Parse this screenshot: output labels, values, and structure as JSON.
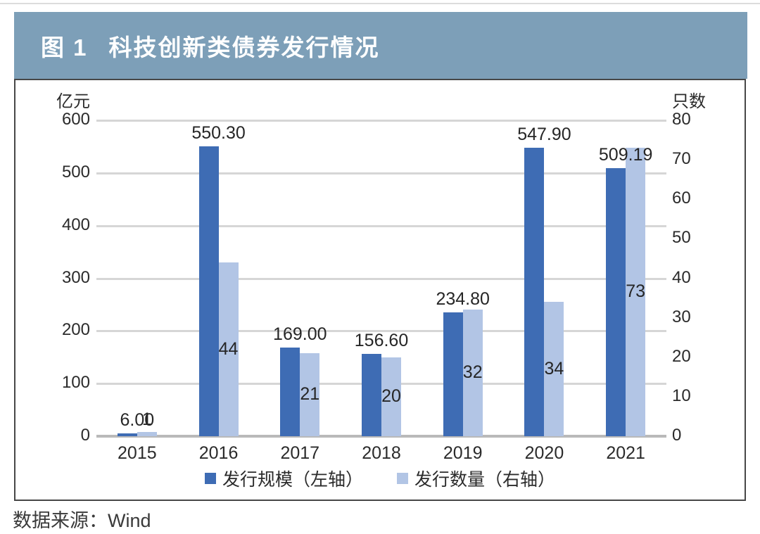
{
  "page": {
    "title_prefix": "图 1",
    "title": "科技创新类债券发行情况",
    "source": "数据来源：Wind"
  },
  "colors": {
    "title_bar": "#7d9fb8",
    "dark_bar": "#3e6cb4",
    "light_bar": "#b2c5e5",
    "gridline": "#d6d6d6",
    "baseline": "#b9b9b9",
    "box_border": "#474747"
  },
  "chart_data": {
    "type": "bar",
    "title": "图 1 科技创新类债券发行情况",
    "categories": [
      "2015",
      "2016",
      "2017",
      "2018",
      "2019",
      "2020",
      "2021"
    ],
    "series": [
      {
        "name": "发行规模（左轴）",
        "axis": "left",
        "color": "#3e6cb4",
        "values": [
          6.0,
          550.3,
          169.0,
          156.6,
          234.8,
          547.9,
          509.19
        ],
        "labels": [
          "6.00",
          "550.30",
          "169.00",
          "156.60",
          "234.80",
          "547.90",
          "509.19"
        ]
      },
      {
        "name": "发行数量（右轴）",
        "axis": "right",
        "color": "#b2c5e5",
        "values": [
          1,
          44,
          21,
          20,
          32,
          34,
          73
        ],
        "labels": [
          "1",
          "44",
          "21",
          "20",
          "32",
          "34",
          "73"
        ]
      }
    ],
    "left_axis": {
      "label": "亿元",
      "min": 0,
      "max": 600,
      "step": 100,
      "ticks": [
        "600",
        "500",
        "400",
        "300",
        "200",
        "100",
        "0"
      ]
    },
    "right_axis": {
      "label": "只数",
      "min": 0,
      "max": 80,
      "step": 10,
      "ticks": [
        "80",
        "70",
        "60",
        "50",
        "40",
        "30",
        "20",
        "10",
        "0"
      ]
    },
    "grid": true,
    "legend_position": "bottom"
  }
}
